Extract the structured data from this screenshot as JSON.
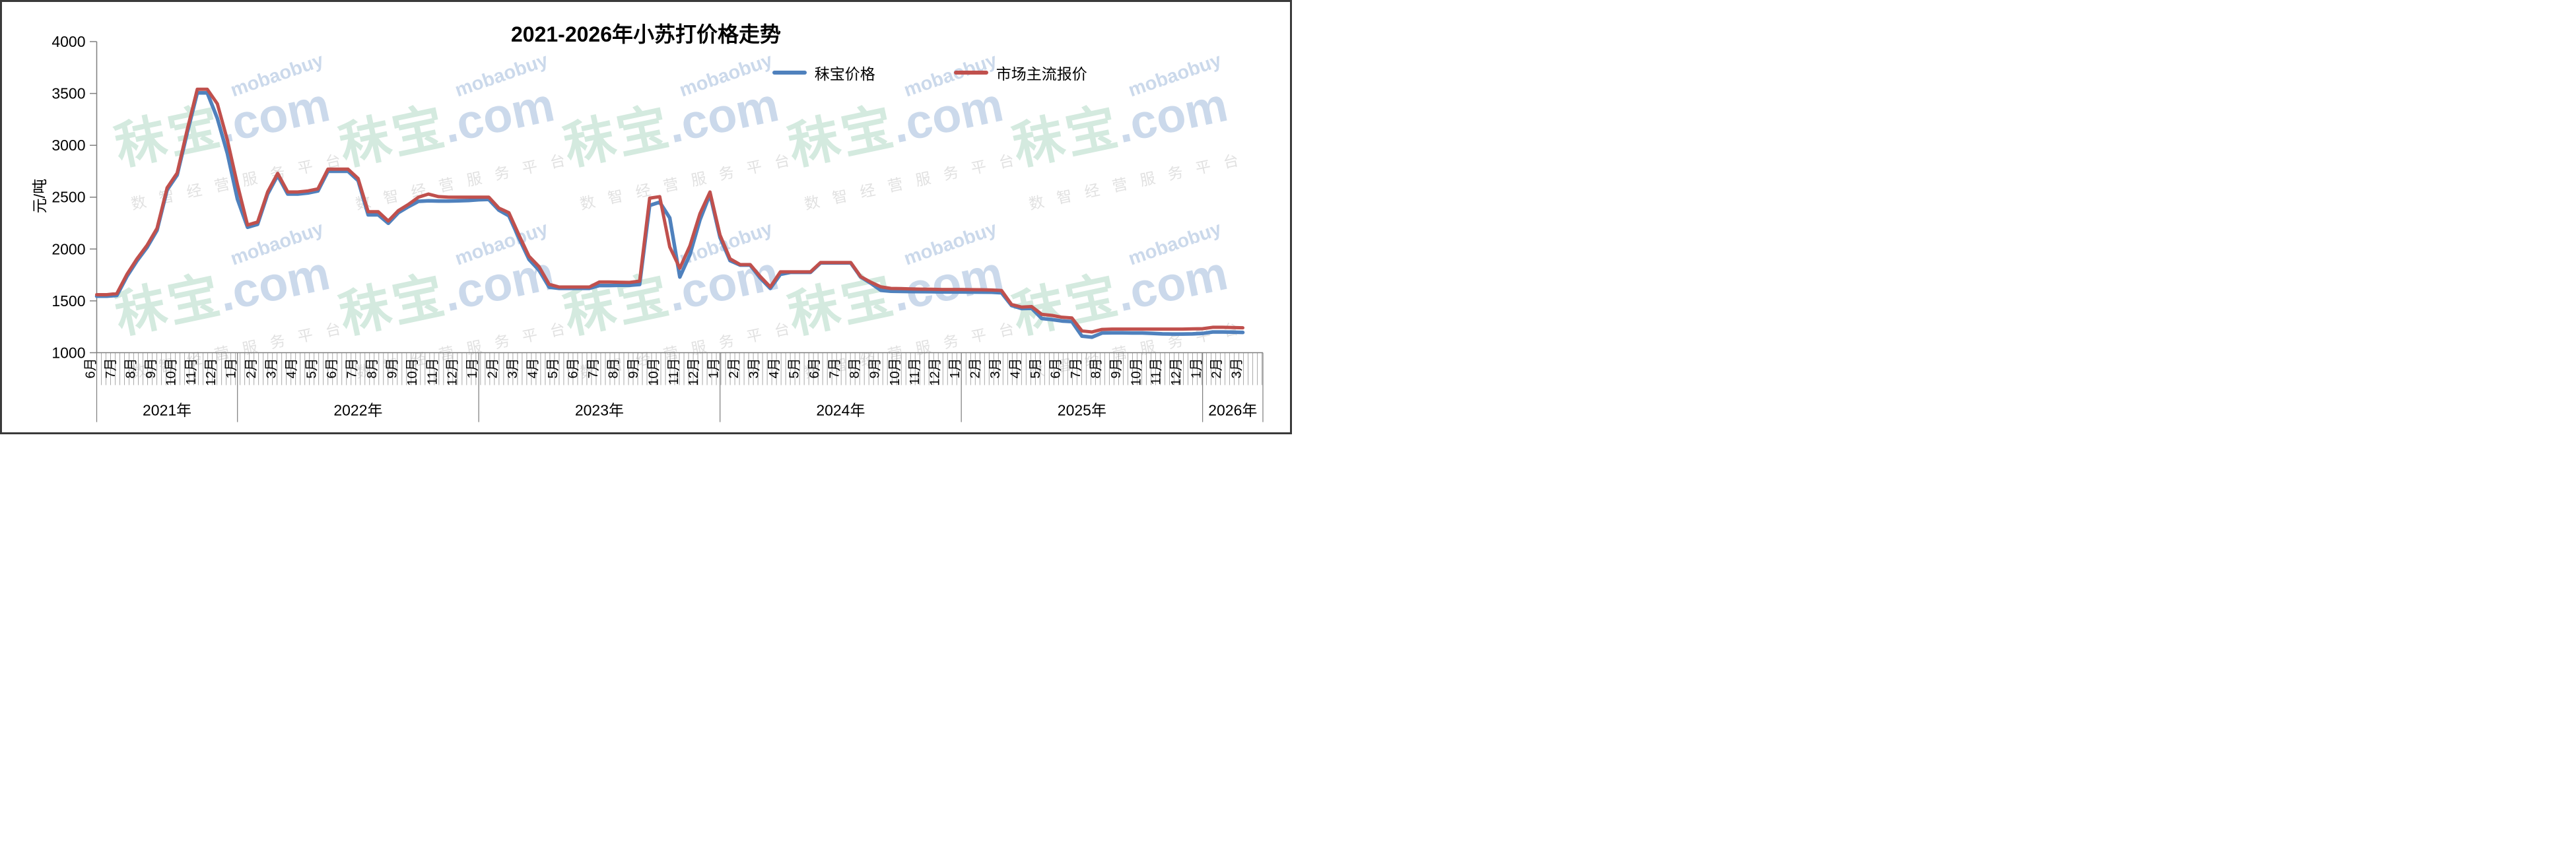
{
  "y_axis_title": "元/吨",
  "legend": {
    "items": [
      {
        "label": "秣宝价格",
        "color": "#4F81BD"
      },
      {
        "label": "市场主流报价",
        "color": "#C0504D"
      }
    ]
  },
  "watermark": {
    "brand": "秣宝",
    "domain": ".com",
    "latin": "mobaobuy",
    "tagline": "数智经营服务平台",
    "brand_color": "#cde7da",
    "latin_color": "#c3d3e8",
    "tagline_color": "#dcdcdc"
  },
  "chart_data": {
    "type": "line",
    "title": "2021-2026年小苏打价格走势",
    "ylabel": "元/吨",
    "ylim": [
      1000,
      4000
    ],
    "y_ticks": [
      4000,
      3500,
      3000,
      2500,
      2000,
      1500,
      1000
    ],
    "x_start": "2021-06",
    "x_end": "2026-03",
    "sampling": "half-month",
    "grid": false,
    "legend_position": "top-right",
    "year_sections": [
      {
        "year": "2021年",
        "months": [
          "6月",
          "7月",
          "8月",
          "9月",
          "10月",
          "11月",
          "12月"
        ]
      },
      {
        "year": "2022年",
        "months": [
          "1月",
          "2月",
          "3月",
          "4月",
          "5月",
          "6月",
          "7月",
          "8月",
          "9月",
          "10月",
          "11月",
          "12月"
        ]
      },
      {
        "year": "2023年",
        "months": [
          "1月",
          "2月",
          "3月",
          "4月",
          "5月",
          "6月",
          "7月",
          "8月",
          "9月",
          "10月",
          "11月",
          "12月"
        ]
      },
      {
        "year": "2024年",
        "months": [
          "1月",
          "2月",
          "3月",
          "4月",
          "5月",
          "6月",
          "7月",
          "8月",
          "9月",
          "10月",
          "11月",
          "12月"
        ]
      },
      {
        "year": "2025年",
        "months": [
          "1月",
          "2月",
          "3月",
          "4月",
          "5月",
          "6月",
          "7月",
          "8月",
          "9月",
          "10月",
          "11月",
          "12月"
        ]
      },
      {
        "year": "2026年",
        "months": [
          "1月",
          "2月",
          "3月"
        ]
      }
    ],
    "series": [
      {
        "name": "秣宝价格",
        "color": "#4F81BD",
        "values": [
          1545,
          1545,
          1552,
          1735,
          1885,
          2015,
          2180,
          2570,
          2713,
          3120,
          3505,
          3505,
          3260,
          2920,
          2480,
          2210,
          2238,
          2530,
          2710,
          2530,
          2530,
          2540,
          2560,
          2750,
          2750,
          2750,
          2660,
          2330,
          2330,
          2248,
          2350,
          2408,
          2460,
          2465,
          2462,
          2462,
          2465,
          2468,
          2475,
          2478,
          2375,
          2320,
          2105,
          1900,
          1795,
          1632,
          1621,
          1621,
          1621,
          1621,
          1648,
          1648,
          1650,
          1650,
          1658,
          2420,
          2452,
          2300,
          1730,
          1945,
          2280,
          2528,
          2112,
          1888,
          1845,
          1845,
          1720,
          1620,
          1756,
          1775,
          1775,
          1775,
          1866,
          1866,
          1866,
          1866,
          1730,
          1670,
          1602,
          1593,
          1591,
          1590,
          1589,
          1588,
          1587,
          1586,
          1586,
          1585,
          1584,
          1583,
          1578,
          1455,
          1426,
          1428,
          1330,
          1320,
          1306,
          1300,
          1160,
          1150,
          1190,
          1192,
          1192,
          1190,
          1190,
          1186,
          1182,
          1180,
          1180,
          1182,
          1186,
          1200,
          1200,
          1198,
          1196
        ]
      },
      {
        "name": "市场主流报价",
        "color": "#C0504D",
        "values": [
          1560,
          1560,
          1570,
          1755,
          1905,
          2035,
          2200,
          2590,
          2733,
          3150,
          3540,
          3540,
          3400,
          3050,
          2620,
          2232,
          2260,
          2550,
          2730,
          2550,
          2550,
          2560,
          2580,
          2770,
          2770,
          2770,
          2680,
          2360,
          2360,
          2270,
          2370,
          2430,
          2500,
          2530,
          2505,
          2500,
          2500,
          2500,
          2500,
          2500,
          2395,
          2350,
          2135,
          1930,
          1830,
          1660,
          1633,
          1633,
          1633,
          1633,
          1682,
          1682,
          1680,
          1678,
          1690,
          2490,
          2505,
          2020,
          1815,
          2030,
          2340,
          2550,
          2135,
          1905,
          1850,
          1850,
          1735,
          1634,
          1780,
          1780,
          1780,
          1780,
          1870,
          1870,
          1870,
          1870,
          1733,
          1680,
          1635,
          1620,
          1618,
          1615,
          1613,
          1612,
          1610,
          1610,
          1610,
          1608,
          1607,
          1605,
          1600,
          1465,
          1440,
          1445,
          1370,
          1360,
          1342,
          1335,
          1210,
          1200,
          1225,
          1228,
          1228,
          1228,
          1228,
          1228,
          1228,
          1228,
          1228,
          1230,
          1232,
          1245,
          1245,
          1243,
          1240
        ]
      }
    ]
  }
}
